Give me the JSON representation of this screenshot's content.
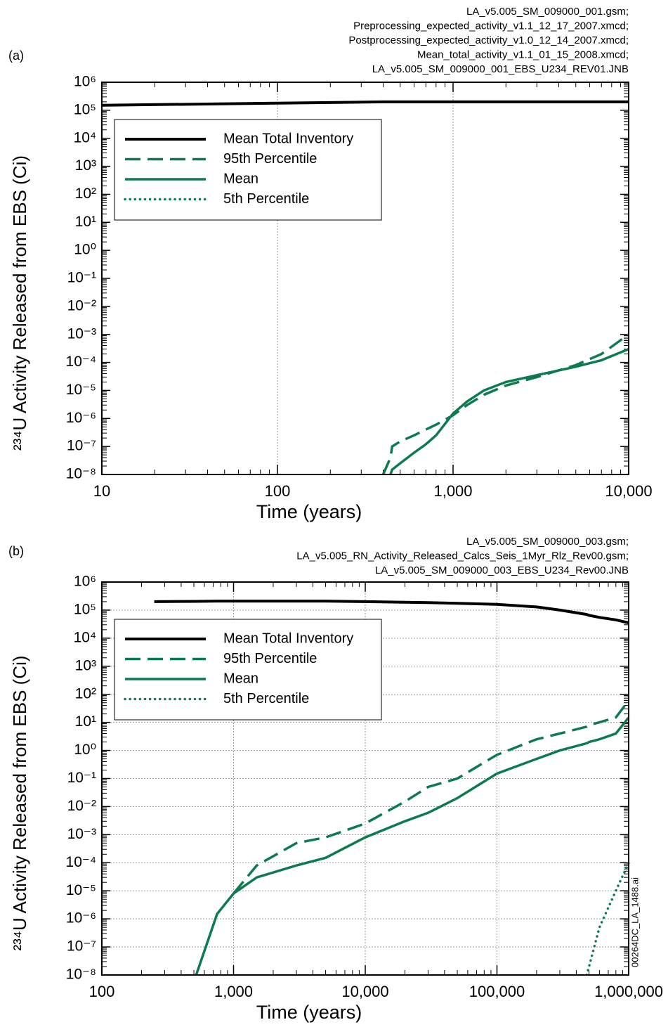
{
  "chart_data": [
    {
      "type": "line",
      "panel_label": "(a)",
      "source_files": [
        "LA_v5.005_SM_009000_001.gsm;",
        "Preprocessing_expected_activity_v1.1_12_17_2007.xmcd;",
        "Postprocessing_expected_activity_v1.0_12_14_2007.xmcd;",
        "Mean_total_activity_v1.1_01_15_2008.xmcd;",
        "LA_v5.005_SM_009000_001_EBS_U234_REV01.JNB"
      ],
      "xlabel": "Time (years)",
      "ylabel": "²³⁴U Activity Released from EBS (Ci)",
      "xscale": "log",
      "yscale": "log",
      "grid": "x",
      "legend": "upper left",
      "xlim": [
        10,
        10000
      ],
      "ylim": [
        1e-08,
        1000000
      ],
      "xticks": [
        10,
        100,
        {
          "value": 1000,
          "label": "1,000"
        },
        {
          "value": 10000,
          "label": "10,000"
        }
      ],
      "yticks": [
        {
          "value": 1e-08,
          "label": "10⁻⁸"
        },
        {
          "value": 1e-07,
          "label": "10⁻⁷"
        },
        {
          "value": 1e-06,
          "label": "10⁻⁶"
        },
        {
          "value": 1e-05,
          "label": "10⁻⁵"
        },
        {
          "value": 0.0001,
          "label": "10⁻⁴"
        },
        {
          "value": 0.001,
          "label": "10⁻³"
        },
        {
          "value": 0.01,
          "label": "10⁻²"
        },
        {
          "value": 0.1,
          "label": "10⁻¹"
        },
        {
          "value": 1,
          "label": "10⁰"
        },
        {
          "value": 10,
          "label": "10¹"
        },
        {
          "value": 100,
          "label": "10²"
        },
        {
          "value": 1000,
          "label": "10³"
        },
        {
          "value": 10000,
          "label": "10⁴"
        },
        {
          "value": 100000,
          "label": "10⁵"
        },
        {
          "value": 1000000,
          "label": "10⁶"
        }
      ],
      "x": [
        10,
        100,
        400,
        440,
        450,
        500,
        600,
        700,
        800,
        1000,
        1200,
        1500,
        2000,
        3000,
        5000,
        7000,
        10000
      ],
      "series": [
        {
          "name": "Mean Total Inventory",
          "color": "#000000",
          "style": "solid",
          "values": [
            150000,
            180000,
            200000,
            200000,
            200000,
            200000,
            200000,
            200000,
            200000,
            200000,
            200000,
            200000,
            200000,
            200000,
            200000,
            200000,
            200000
          ]
        },
        {
          "name": "95th Percentile",
          "color": "#0d7a50",
          "style": "dashed",
          "values": [
            null,
            null,
            1e-08,
            4e-08,
            1e-07,
            1.5e-07,
            2.5e-07,
            4e-07,
            6e-07,
            1.3e-06,
            3e-06,
            7e-06,
            1.5e-05,
            3e-05,
            8e-05,
            0.0002,
            0.001
          ]
        },
        {
          "name": "Mean",
          "color": "#0d7a50",
          "style": "solid",
          "values": [
            null,
            null,
            null,
            1e-08,
            1.5e-08,
            2.5e-08,
            6e-08,
            1.2e-07,
            2.5e-07,
            1.5e-06,
            4e-06,
            1e-05,
            2e-05,
            3.5e-05,
            7e-05,
            0.00012,
            0.0003
          ]
        },
        {
          "name": "5th Percentile",
          "color": "#0d7a50",
          "style": "dotted",
          "values": [
            null,
            null,
            null,
            null,
            null,
            null,
            null,
            null,
            null,
            null,
            null,
            null,
            null,
            null,
            null,
            null,
            null
          ]
        }
      ]
    },
    {
      "type": "line",
      "panel_label": "(b)",
      "source_files": [
        "LA_v5.005_SM_009000_003.gsm;",
        "LA_v5.005_RN_Activity_Released_Calcs_Seis_1Myr_Rlz_Rev00.gsm;",
        "LA_v5.005_SM_009000_003_EBS_U234_Rev00.JNB"
      ],
      "side_note": "00264DC_LA_1488.ai",
      "xlabel": "Time (years)",
      "ylabel": "²³⁴U Activity Released from EBS (Ci)",
      "xscale": "log",
      "yscale": "log",
      "grid": "both",
      "legend": "upper left",
      "xlim": [
        100,
        1000000
      ],
      "ylim": [
        1e-08,
        1000000
      ],
      "xticks": [
        100,
        {
          "value": 1000,
          "label": "1,000"
        },
        {
          "value": 10000,
          "label": "10,000"
        },
        {
          "value": 100000,
          "label": "100,000"
        },
        {
          "value": 1000000,
          "label": "1,000,000"
        }
      ],
      "yticks": [
        {
          "value": 1e-08,
          "label": "10⁻⁸"
        },
        {
          "value": 1e-07,
          "label": "10⁻⁷"
        },
        {
          "value": 1e-06,
          "label": "10⁻⁶"
        },
        {
          "value": 1e-05,
          "label": "10⁻⁵"
        },
        {
          "value": 0.0001,
          "label": "10⁻⁴"
        },
        {
          "value": 0.001,
          "label": "10⁻³"
        },
        {
          "value": 0.01,
          "label": "10⁻²"
        },
        {
          "value": 0.1,
          "label": "10⁻¹"
        },
        {
          "value": 1,
          "label": "10⁰"
        },
        {
          "value": 10,
          "label": "10¹"
        },
        {
          "value": 100,
          "label": "10²"
        },
        {
          "value": 1000,
          "label": "10³"
        },
        {
          "value": 10000,
          "label": "10⁴"
        },
        {
          "value": 100000,
          "label": "10⁵"
        },
        {
          "value": 1000000,
          "label": "10⁶"
        }
      ],
      "x": [
        250,
        520,
        750,
        1000,
        1500,
        3000,
        5000,
        10000,
        20000,
        30000,
        50000,
        100000,
        200000,
        300000,
        480000,
        500000,
        600000,
        800000,
        1000000
      ],
      "series": [
        {
          "name": "Mean Total Inventory",
          "color": "#000000",
          "style": "solid",
          "values": [
            200000,
            205000,
            210000,
            210000,
            210000,
            210000,
            210000,
            200000,
            190000,
            185000,
            175000,
            160000,
            130000,
            100000,
            70000,
            65000,
            55000,
            45000,
            35000
          ]
        },
        {
          "name": "95th Percentile",
          "color": "#0d7a50",
          "style": "dashed",
          "values": [
            null,
            null,
            null,
            8e-06,
            8e-05,
            0.0005,
            0.0008,
            0.0025,
            0.015,
            0.05,
            0.1,
            0.7,
            2.5,
            4,
            7,
            8,
            10,
            15,
            60
          ]
        },
        {
          "name": "Mean",
          "color": "#0d7a50",
          "style": "solid",
          "values": [
            null,
            1e-08,
            1.5e-06,
            8e-06,
            3e-05,
            8e-05,
            0.00015,
            0.0008,
            0.003,
            0.006,
            0.02,
            0.15,
            0.5,
            1,
            1.8,
            2,
            2.5,
            4,
            15
          ]
        },
        {
          "name": "5th Percentile",
          "color": "#0d7a50",
          "style": "dotted",
          "values": [
            null,
            null,
            null,
            null,
            null,
            null,
            null,
            null,
            null,
            null,
            null,
            null,
            null,
            null,
            1e-08,
            2e-08,
            5e-07,
            1e-05,
            0.0001
          ]
        }
      ]
    }
  ]
}
